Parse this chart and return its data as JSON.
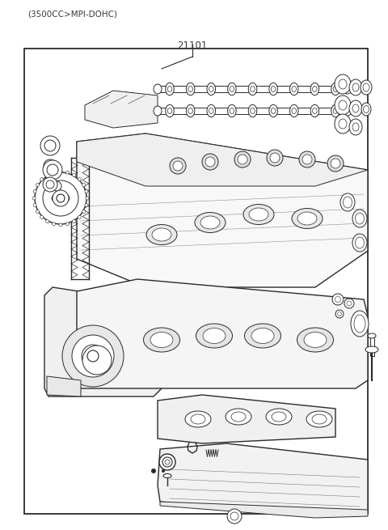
{
  "title_top": "(3500CC>MPI-DOHC)",
  "part_number": "21101",
  "background_color": "#ffffff",
  "border_color": "#1a1a1a",
  "text_color": "#3a3a3a",
  "line_color": "#2a2a2a",
  "figsize": [
    4.8,
    6.55
  ],
  "dpi": 100
}
